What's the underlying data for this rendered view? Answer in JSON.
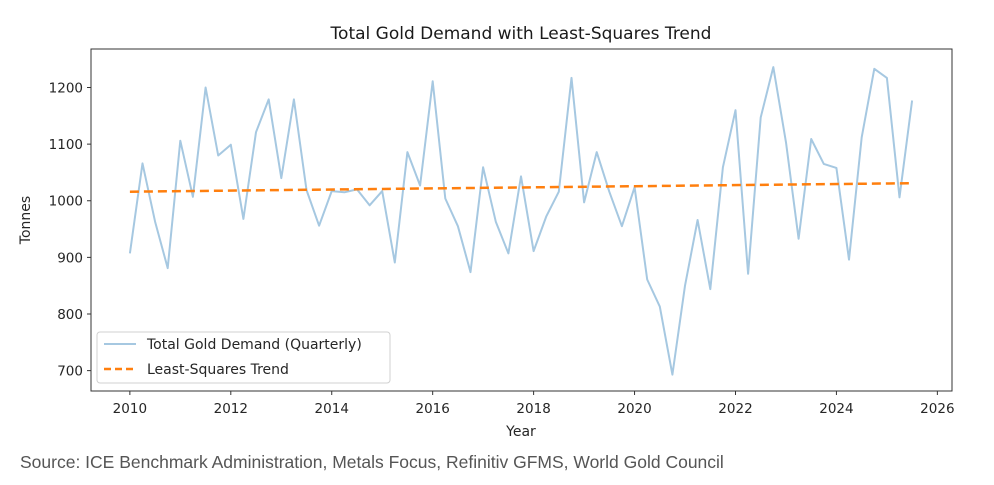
{
  "chart_data": {
    "type": "line",
    "title": "Total Gold Demand with Least-Squares Trend",
    "xlabel": "Year",
    "ylabel": "Tonnes",
    "xlim": [
      2009.23,
      2026.29
    ],
    "ylim": [
      664,
      1268
    ],
    "xticks": [
      2010,
      2012,
      2014,
      2016,
      2018,
      2020,
      2022,
      2024,
      2026
    ],
    "yticks": [
      700,
      800,
      900,
      1000,
      1100,
      1200
    ],
    "grid": false,
    "legend_position": "lower-left",
    "series": [
      {
        "name": "Total Gold Demand (Quarterly)",
        "style": "solid",
        "color": "#a6c8e1",
        "x": [
          2010.0,
          2010.25,
          2010.5,
          2010.75,
          2011.0,
          2011.25,
          2011.5,
          2011.75,
          2012.0,
          2012.25,
          2012.5,
          2012.75,
          2013.0,
          2013.25,
          2013.5,
          2013.75,
          2014.0,
          2014.25,
          2014.5,
          2014.75,
          2015.0,
          2015.25,
          2015.5,
          2015.75,
          2016.0,
          2016.25,
          2016.5,
          2016.75,
          2017.0,
          2017.25,
          2017.5,
          2017.75,
          2018.0,
          2018.25,
          2018.5,
          2018.75,
          2019.0,
          2019.25,
          2019.5,
          2019.75,
          2020.0,
          2020.25,
          2020.5,
          2020.75,
          2021.0,
          2021.25,
          2021.5,
          2021.75,
          2022.0,
          2022.25,
          2022.5,
          2022.75,
          2023.0,
          2023.25,
          2023.5,
          2023.75,
          2024.0,
          2024.25,
          2024.5,
          2024.75,
          2025.0,
          2025.25,
          2025.5
        ],
        "values": [
          907,
          1066,
          963,
          881,
          1106,
          1007,
          1200,
          1080,
          1099,
          968,
          1121,
          1179,
          1040,
          1179,
          1019,
          956,
          1017,
          1015,
          1020,
          992,
          1017,
          891,
          1086,
          1027,
          1211,
          1004,
          955,
          874,
          1059,
          963,
          907,
          1043,
          911,
          972,
          1016,
          1217,
          997,
          1086,
          1016,
          955,
          1024,
          861,
          813,
          693,
          850,
          966,
          844,
          1059,
          1160,
          871,
          1147,
          1236,
          1103,
          933,
          1109,
          1065,
          1058,
          896,
          1112,
          1233,
          1217,
          1006,
          1177
        ]
      },
      {
        "name": "Least-Squares Trend",
        "style": "dashed",
        "color": "#ff7f0e",
        "x": [
          2010.0,
          2025.5
        ],
        "values": [
          1016,
          1031
        ]
      }
    ]
  },
  "source": "Source: ICE Benchmark Administration, Metals Focus, Refinitiv GFMS, World Gold Council"
}
